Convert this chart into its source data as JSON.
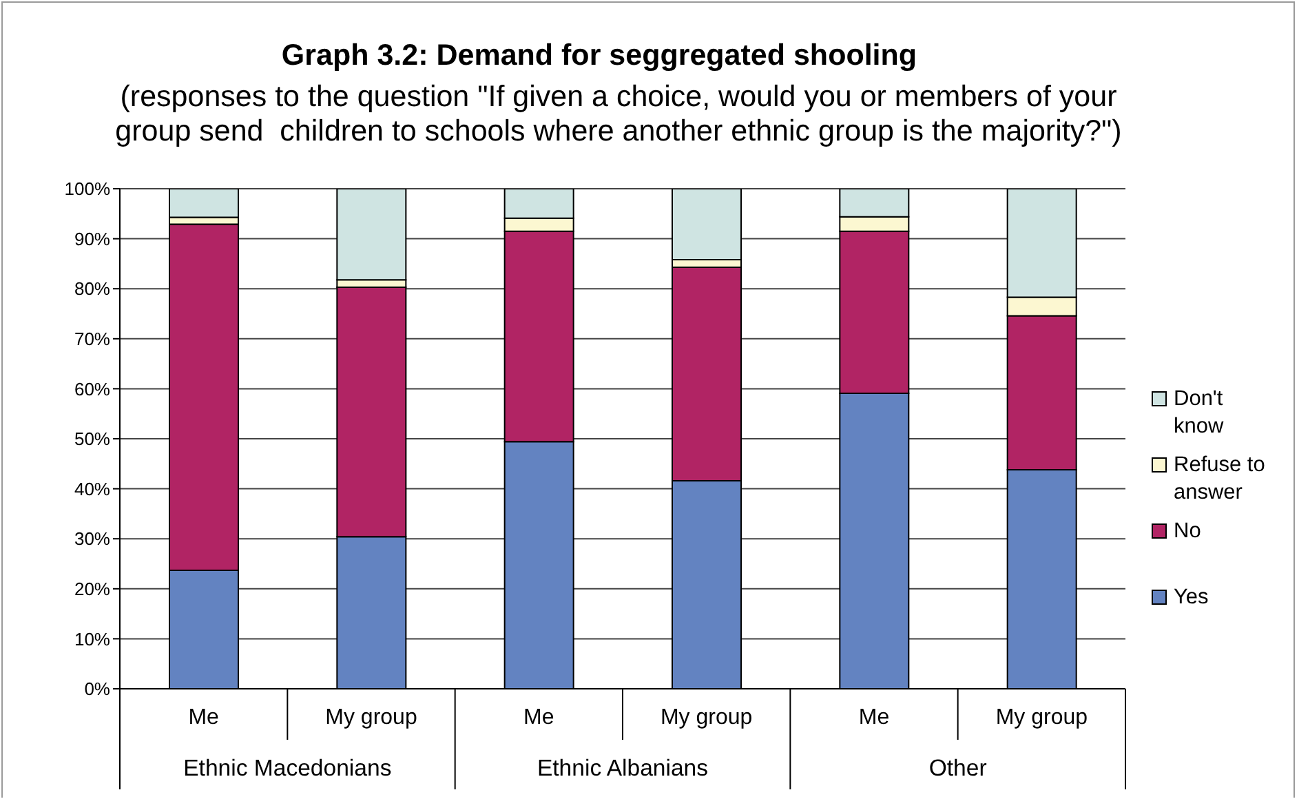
{
  "chart_data": {
    "type": "bar",
    "stacked": true,
    "title": "Graph 3.2: Demand for seggregated shooling",
    "subtitle": "(responses to the question \"If given a choice, would you or members of your group send  children to schools where another ethnic group is the majority?\")",
    "categories": [
      "Me",
      "My group",
      "Me",
      "My group",
      "Me",
      "My group"
    ],
    "annotations": [
      "Ethnic Macedonians",
      "Ethnic Albanians",
      "Other"
    ],
    "series": [
      {
        "name": "Yes",
        "color": "#6383c1",
        "values": [
          23.7,
          30.4,
          49.4,
          41.6,
          59.1,
          43.8
        ]
      },
      {
        "name": "No",
        "color": "#b12464",
        "values": [
          69.2,
          49.9,
          42.1,
          42.7,
          32.4,
          30.8
        ]
      },
      {
        "name": "Refuse to answer",
        "color": "#fcf7d1",
        "values": [
          1.4,
          1.5,
          2.6,
          1.5,
          2.9,
          3.7
        ]
      },
      {
        "name": "Don't know",
        "color": "#cfe4e2",
        "values": [
          5.7,
          18.2,
          5.9,
          14.2,
          5.6,
          21.7
        ]
      }
    ],
    "ylim": [
      0,
      100
    ],
    "yticks": [
      {
        "value": 0,
        "label": "0%"
      },
      {
        "value": 10,
        "label": "10%"
      },
      {
        "value": 20,
        "label": "20%"
      },
      {
        "value": 30,
        "label": "30%"
      },
      {
        "value": 40,
        "label": "40%"
      },
      {
        "value": 50,
        "label": "50%"
      },
      {
        "value": 60,
        "label": "60%"
      },
      {
        "value": 70,
        "label": "70%"
      },
      {
        "value": 80,
        "label": "80%"
      },
      {
        "value": 90,
        "label": "90%"
      },
      {
        "value": 100,
        "label": "100%"
      }
    ],
    "grid": "y",
    "legend": "right"
  }
}
